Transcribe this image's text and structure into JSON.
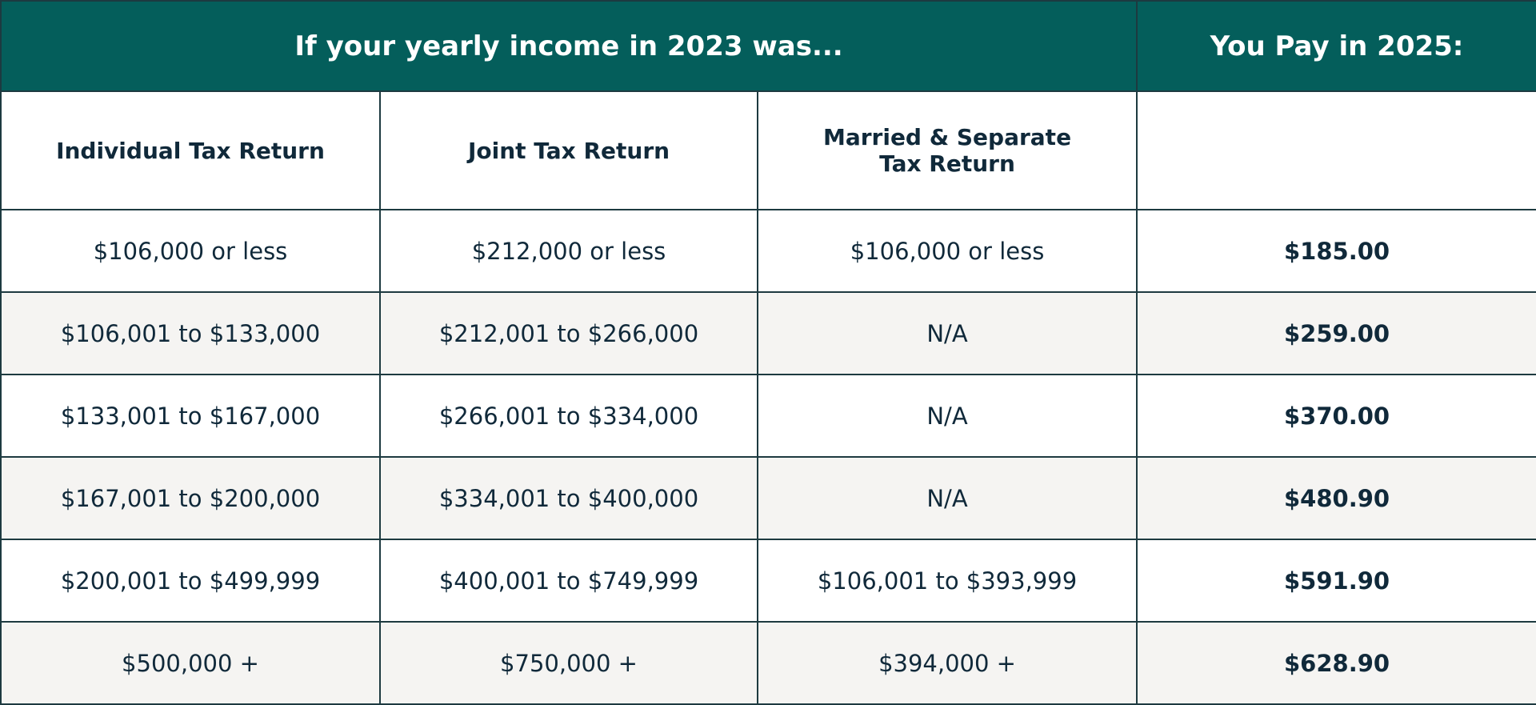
{
  "header": {
    "left": "If your yearly income in 2023 was...",
    "right": "You Pay in 2025:"
  },
  "subheader": [
    "Individual Tax Return",
    "Joint Tax Return",
    "Married & Separate Tax Return"
  ],
  "table": {
    "rows": [
      [
        "$106,000 or less",
        "$212,000 or less",
        "$106,000 or less",
        "$185.00"
      ],
      [
        "$106,001 to $133,000",
        "$212,001 to $266,000",
        "N/A",
        "$259.00"
      ],
      [
        "$133,001 to $167,000",
        "$266,001 to $334,000",
        "N/A",
        "$370.00"
      ],
      [
        "$167,001 to $200,000",
        "$334,001 to $400,000",
        "N/A",
        "$480.90"
      ],
      [
        "$200,001 to $499,999",
        "$400,001 to $749,999",
        "$106,001 to $393,999",
        "$591.90"
      ],
      [
        "$500,000 +",
        "$750,000 +",
        "$394,000 +",
        "$628.90"
      ]
    ]
  }
}
